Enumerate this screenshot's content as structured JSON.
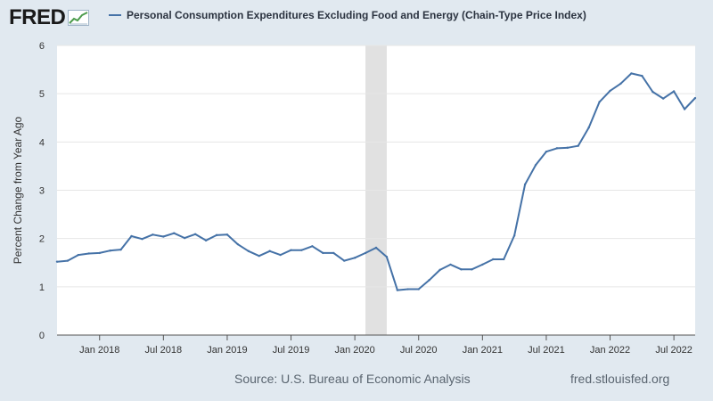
{
  "header": {
    "logo_text": "FRED",
    "legend_label": "Personal Consumption Expenditures Excluding Food and Energy (Chain-Type Price Index)",
    "series_color": "#4572a7"
  },
  "footer": {
    "source": "Source: U.S. Bureau of Economic Analysis",
    "url": "fred.stlouisfed.org"
  },
  "chart_data": {
    "type": "line",
    "title": "",
    "xlabel": "",
    "ylabel": "Percent Change from Year Ago",
    "x_range": [
      "2017-09",
      "2022-08"
    ],
    "ylim": [
      0,
      6
    ],
    "yticks": [
      0,
      1,
      2,
      3,
      4,
      5,
      6
    ],
    "xticks": [
      {
        "date": "2018-01",
        "label": "Jan 2018"
      },
      {
        "date": "2018-07",
        "label": "Jul 2018"
      },
      {
        "date": "2019-01",
        "label": "Jan 2019"
      },
      {
        "date": "2019-07",
        "label": "Jul 2019"
      },
      {
        "date": "2020-01",
        "label": "Jan 2020"
      },
      {
        "date": "2020-07",
        "label": "Jul 2020"
      },
      {
        "date": "2021-01",
        "label": "Jan 2021"
      },
      {
        "date": "2021-07",
        "label": "Jul 2021"
      },
      {
        "date": "2022-01",
        "label": "Jan 2022"
      },
      {
        "date": "2022-07",
        "label": "Jul 2022"
      }
    ],
    "grid": true,
    "recession": {
      "start": "2020-02",
      "end": "2020-04"
    },
    "series": [
      {
        "color": "#4572a7",
        "points": [
          [
            "2017-09",
            1.52
          ],
          [
            "2017-10",
            1.54
          ],
          [
            "2017-11",
            1.66
          ],
          [
            "2017-12",
            1.69
          ],
          [
            "2018-01",
            1.7
          ],
          [
            "2018-02",
            1.75
          ],
          [
            "2018-03",
            1.77
          ],
          [
            "2018-04",
            2.05
          ],
          [
            "2018-05",
            1.99
          ],
          [
            "2018-06",
            2.08
          ],
          [
            "2018-07",
            2.04
          ],
          [
            "2018-08",
            2.11
          ],
          [
            "2018-09",
            2.01
          ],
          [
            "2018-10",
            2.09
          ],
          [
            "2018-11",
            1.96
          ],
          [
            "2018-12",
            2.07
          ],
          [
            "2019-01",
            2.08
          ],
          [
            "2019-02",
            1.88
          ],
          [
            "2019-03",
            1.74
          ],
          [
            "2019-04",
            1.64
          ],
          [
            "2019-05",
            1.74
          ],
          [
            "2019-06",
            1.66
          ],
          [
            "2019-07",
            1.76
          ],
          [
            "2019-08",
            1.76
          ],
          [
            "2019-09",
            1.84
          ],
          [
            "2019-10",
            1.7
          ],
          [
            "2019-11",
            1.7
          ],
          [
            "2019-12",
            1.54
          ],
          [
            "2020-01",
            1.6
          ],
          [
            "2020-02",
            1.7
          ],
          [
            "2020-03",
            1.81
          ],
          [
            "2020-04",
            1.62
          ],
          [
            "2020-05",
            0.93
          ],
          [
            "2020-06",
            0.95
          ],
          [
            "2020-07",
            0.95
          ],
          [
            "2020-08",
            1.14
          ],
          [
            "2020-09",
            1.35
          ],
          [
            "2020-10",
            1.46
          ],
          [
            "2020-11",
            1.36
          ],
          [
            "2020-12",
            1.36
          ],
          [
            "2021-01",
            1.46
          ],
          [
            "2021-02",
            1.57
          ],
          [
            "2021-03",
            1.57
          ],
          [
            "2021-04",
            2.06
          ],
          [
            "2021-05",
            3.12
          ],
          [
            "2021-06",
            3.52
          ],
          [
            "2021-07",
            3.8
          ],
          [
            "2021-08",
            3.87
          ],
          [
            "2021-09",
            3.88
          ],
          [
            "2021-10",
            3.92
          ],
          [
            "2021-11",
            4.3
          ],
          [
            "2021-12",
            4.83
          ],
          [
            "2022-01",
            5.06
          ],
          [
            "2022-02",
            5.21
          ],
          [
            "2022-03",
            5.42
          ],
          [
            "2022-04",
            5.37
          ],
          [
            "2022-05",
            5.04
          ],
          [
            "2022-06",
            4.9
          ],
          [
            "2022-07",
            5.05
          ],
          [
            "2022-08",
            4.68
          ],
          [
            "2022-09",
            4.91
          ]
        ]
      }
    ]
  }
}
